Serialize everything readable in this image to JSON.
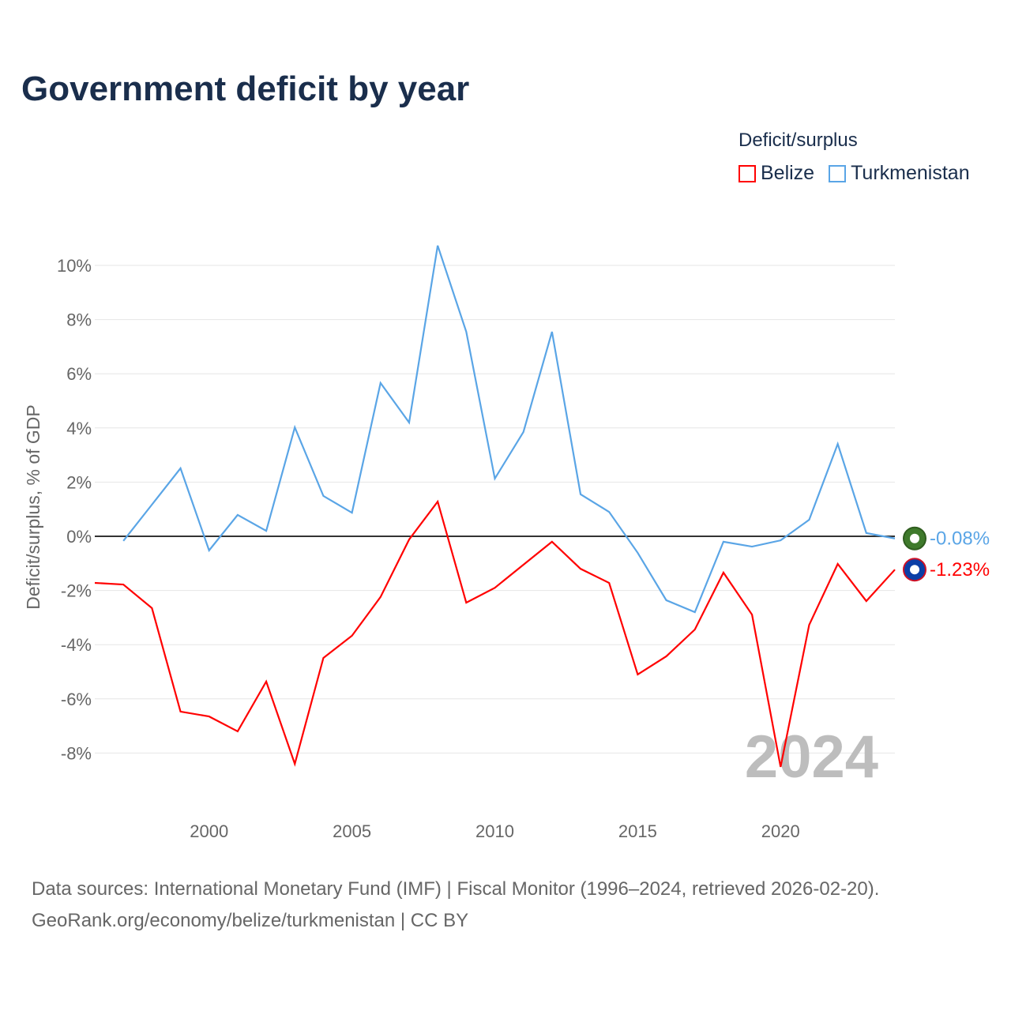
{
  "title": "Government deficit by year",
  "legend": {
    "title": "Deficit/surplus",
    "items": [
      "Belize",
      "Turkmenistan"
    ]
  },
  "source_line1": "Data sources: International Monetary Fund (IMF) | Fiscal Monitor (1996–2024, retrieved 2026-02-20).",
  "source_line2": "GeoRank.org/economy/belize/turkmenistan | CC BY",
  "chart_data": {
    "type": "line",
    "title": "Government deficit by year",
    "xlabel": "",
    "ylabel": "Deficit/surplus, % of GDP",
    "xlim": [
      1996,
      2024
    ],
    "ylim": [
      -10,
      11
    ],
    "yticks": [
      -8,
      -6,
      -4,
      -2,
      0,
      2,
      4,
      6,
      8,
      10
    ],
    "ytick_labels": [
      "-8%",
      "-6%",
      "-4%",
      "-2%",
      "0%",
      "2%",
      "4%",
      "6%",
      "8%",
      "10%"
    ],
    "xticks": [
      2000,
      2005,
      2010,
      2015,
      2020
    ],
    "xtick_labels": [
      "2000",
      "2005",
      "2010",
      "2015",
      "2020"
    ],
    "year_watermark": "2024",
    "series": [
      {
        "name": "Belize",
        "color": "#ff0000",
        "end_label": "-1.23%",
        "x": [
          1996,
          1997,
          1998,
          1999,
          2000,
          2001,
          2002,
          2003,
          2004,
          2005,
          2006,
          2007,
          2008,
          2009,
          2010,
          2011,
          2012,
          2013,
          2014,
          2015,
          2016,
          2017,
          2018,
          2019,
          2020,
          2021,
          2022,
          2023,
          2024
        ],
        "values": [
          -1.72,
          -1.78,
          -2.65,
          -6.47,
          -6.65,
          -7.2,
          -5.36,
          -8.4,
          -4.49,
          -3.67,
          -2.24,
          -0.12,
          1.28,
          -2.45,
          -1.9,
          -1.05,
          -0.2,
          -1.2,
          -1.72,
          -5.1,
          -4.43,
          -3.44,
          -1.34,
          -2.89,
          -8.51,
          -3.27,
          -1.02,
          -2.39,
          -1.23
        ]
      },
      {
        "name": "Turkmenistan",
        "color": "#5aa5e6",
        "end_label": "-0.08%",
        "x": [
          1997,
          1998,
          1999,
          2000,
          2001,
          2002,
          2003,
          2004,
          2005,
          2006,
          2007,
          2008,
          2009,
          2010,
          2011,
          2012,
          2013,
          2014,
          2015,
          2016,
          2017,
          2018,
          2019,
          2020,
          2021,
          2022,
          2023,
          2024
        ],
        "values": [
          -0.17,
          1.17,
          2.51,
          -0.52,
          0.79,
          0.2,
          4.02,
          1.49,
          0.87,
          5.66,
          4.2,
          10.73,
          7.55,
          2.13,
          3.85,
          7.55,
          1.55,
          0.9,
          -0.61,
          -2.36,
          -2.8,
          -0.2,
          -0.38,
          -0.15,
          0.61,
          3.41,
          0.12,
          -0.08
        ]
      }
    ]
  }
}
